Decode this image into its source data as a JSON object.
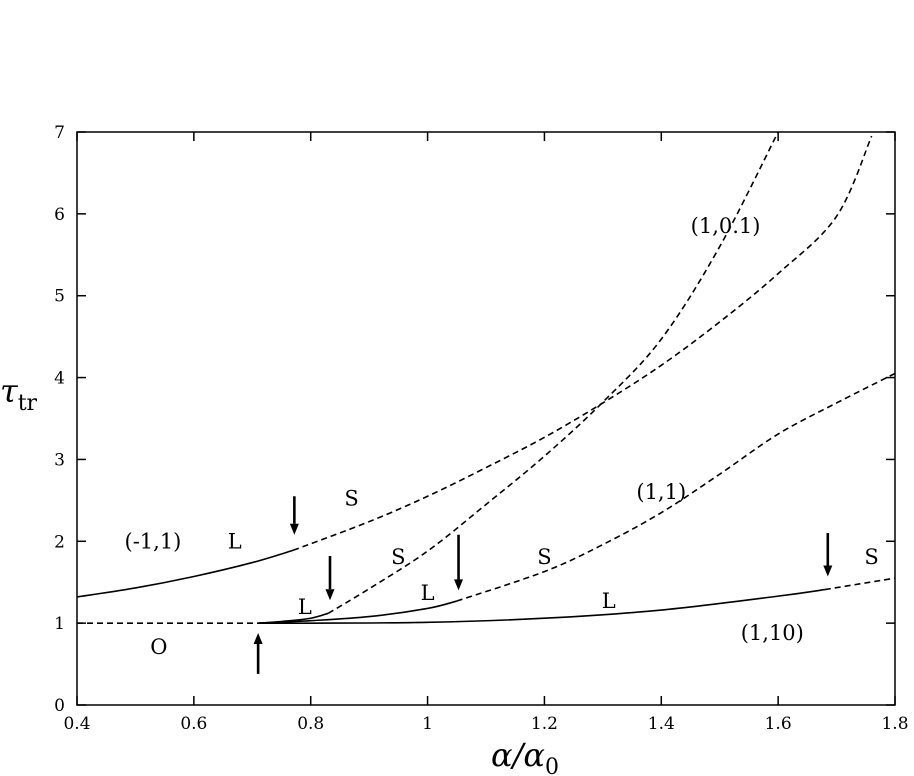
{
  "chart_data": {
    "type": "line",
    "title": "",
    "xlabel": {
      "main": "α/α",
      "sub": "0"
    },
    "ylabel": {
      "main": "τ",
      "sub": "tr"
    },
    "xlim": [
      0.4,
      1.8
    ],
    "ylim": [
      0,
      7
    ],
    "xticks": [
      0.4,
      0.6,
      0.8,
      1,
      1.2,
      1.4,
      1.6,
      1.8
    ],
    "xtick_labels": [
      "0.4",
      "0.6",
      "0.8",
      "1",
      "1.2",
      "1.4",
      "1.6",
      "1.8"
    ],
    "yticks": [
      0,
      1,
      2,
      3,
      4,
      5,
      6,
      7
    ],
    "ytick_labels": [
      "0",
      "1",
      "2",
      "3",
      "4",
      "5",
      "6",
      "7"
    ],
    "grid": false,
    "series": [
      {
        "name": "(-1,1) L",
        "style": "solid",
        "x": [
          0.4,
          0.5,
          0.6,
          0.7,
          0.77
        ],
        "y": [
          1.32,
          1.43,
          1.57,
          1.74,
          1.89
        ]
      },
      {
        "name": "(-1,1) S",
        "style": "dashed",
        "x": [
          0.77,
          0.9,
          1.0,
          1.1,
          1.2,
          1.3,
          1.4,
          1.5,
          1.6,
          1.7,
          1.76
        ],
        "y": [
          1.89,
          2.24,
          2.55,
          2.9,
          3.27,
          3.69,
          4.15,
          4.68,
          5.27,
          5.97,
          6.95
        ]
      },
      {
        "name": "O",
        "style": "dashed",
        "x": [
          0.4,
          0.71
        ],
        "y": [
          1.0,
          1.0
        ]
      },
      {
        "name": "(1,0.1) L",
        "style": "solid",
        "x": [
          0.71,
          0.75,
          0.8,
          0.83
        ],
        "y": [
          1.0,
          1.02,
          1.06,
          1.12
        ]
      },
      {
        "name": "(1,0.1) S",
        "style": "dashed",
        "x": [
          0.83,
          0.9,
          1.0,
          1.1,
          1.2,
          1.3,
          1.4,
          1.5,
          1.6
        ],
        "y": [
          1.12,
          1.42,
          1.88,
          2.45,
          3.04,
          3.7,
          4.47,
          5.6,
          7.0
        ]
      },
      {
        "name": "(1,1) L",
        "style": "solid",
        "x": [
          0.71,
          0.8,
          0.9,
          1.0,
          1.05
        ],
        "y": [
          1.0,
          1.03,
          1.08,
          1.18,
          1.27
        ]
      },
      {
        "name": "(1,1) S",
        "style": "dashed",
        "x": [
          1.05,
          1.2,
          1.3,
          1.4,
          1.5,
          1.6,
          1.7,
          1.8
        ],
        "y": [
          1.27,
          1.63,
          1.96,
          2.35,
          2.82,
          3.31,
          3.69,
          4.05
        ]
      },
      {
        "name": "(1,10) L",
        "style": "solid",
        "x": [
          0.71,
          0.8,
          1.0,
          1.2,
          1.4,
          1.6,
          1.68
        ],
        "y": [
          1.0,
          1.0,
          1.01,
          1.06,
          1.16,
          1.33,
          1.41
        ]
      },
      {
        "name": "(1,10) S",
        "style": "dashed",
        "x": [
          1.68,
          1.74,
          1.8
        ],
        "y": [
          1.41,
          1.48,
          1.55
        ]
      }
    ],
    "annotations": [
      {
        "text": "(-1,1)",
        "x": 0.53,
        "y": 2.0
      },
      {
        "text": "L",
        "x": 0.67,
        "y": 2.0
      },
      {
        "text": "S",
        "x": 0.87,
        "y": 2.52
      },
      {
        "text": "S",
        "x": 0.95,
        "y": 1.81
      },
      {
        "text": "(1,0.1)",
        "x": 1.51,
        "y": 5.85
      },
      {
        "text": "(1,1)",
        "x": 1.4,
        "y": 2.6
      },
      {
        "text": "S",
        "x": 1.2,
        "y": 1.81
      },
      {
        "text": "S",
        "x": 1.76,
        "y": 1.81
      },
      {
        "text": "L",
        "x": 0.79,
        "y": 1.2
      },
      {
        "text": "L",
        "x": 1.0,
        "y": 1.37
      },
      {
        "text": "L",
        "x": 1.31,
        "y": 1.27
      },
      {
        "text": "(1,10)",
        "x": 1.59,
        "y": 0.88
      },
      {
        "text": "O",
        "x": 0.54,
        "y": 0.71
      }
    ],
    "arrows": [
      {
        "x": 0.772,
        "y_from": 2.55,
        "y_to": 2.08,
        "direction": "down"
      },
      {
        "x": 0.833,
        "y_from": 1.82,
        "y_to": 1.28,
        "direction": "down"
      },
      {
        "x": 1.053,
        "y_from": 2.08,
        "y_to": 1.4,
        "direction": "down"
      },
      {
        "x": 1.685,
        "y_from": 2.1,
        "y_to": 1.57,
        "direction": "down"
      },
      {
        "x": 0.71,
        "y_from": 0.38,
        "y_to": 0.88,
        "direction": "up"
      }
    ]
  }
}
